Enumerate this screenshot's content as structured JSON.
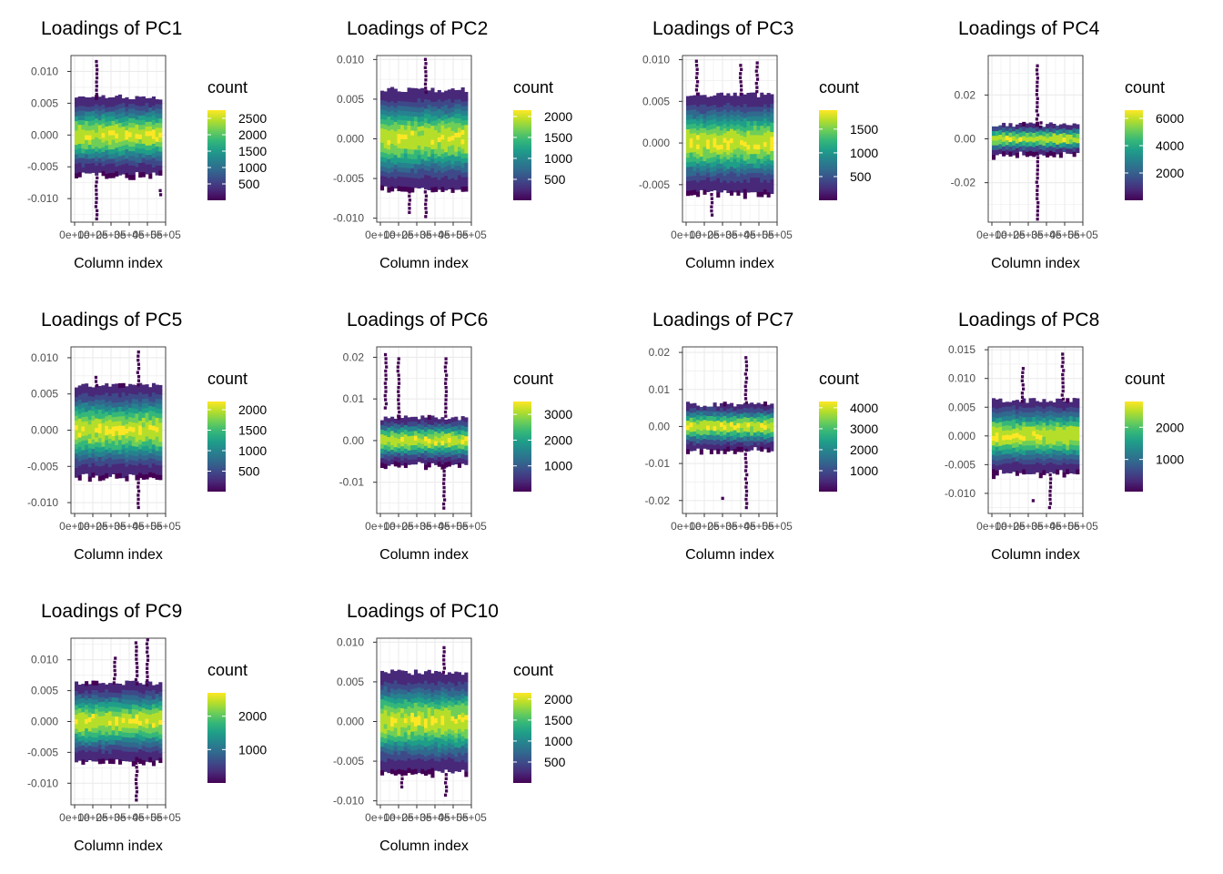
{
  "colors": {
    "viridis": [
      "#440154",
      "#482878",
      "#3e4989",
      "#31688e",
      "#26828e",
      "#1f9e89",
      "#35b779",
      "#6ece58",
      "#b5de2b",
      "#fde725"
    ],
    "grid": "#ebebeb",
    "panel_border": "#333333",
    "axis_text": "#4d4d4d"
  },
  "chart_data": [
    {
      "type": "heatmap",
      "title": "Loadings of PC1",
      "xlabel": "Column index",
      "ylabel": "",
      "legend_title": "count",
      "xlim": [
        -20000,
        500000
      ],
      "x_ticks": [
        0,
        100000,
        200000,
        300000,
        400000,
        500000
      ],
      "x_tick_labels": [
        "0e+00",
        "1e+05",
        "2e+05",
        "3e+05",
        "4e+05",
        "5e+05"
      ],
      "ylim": [
        -0.0137,
        0.0125
      ],
      "y_ticks": [
        -0.01,
        -0.005,
        0.0,
        0.005,
        0.01
      ],
      "y_tick_labels": [
        "-0.010",
        "-0.005",
        "0.000",
        "0.005",
        "0.010"
      ],
      "legend_ticks": [
        500,
        1000,
        1500,
        2000,
        2500
      ],
      "legend_max": 2750,
      "center": 0.0,
      "band_half_width": 0.006,
      "band_max_count": 2750,
      "outliers": [
        {
          "x": 120000,
          "y_min": 0.006,
          "y_max": 0.0118
        },
        {
          "x": 120000,
          "y_min": -0.0135,
          "y_max": -0.0065
        },
        {
          "x": 470000,
          "y_min": -0.0095,
          "y_max": -0.0085
        }
      ]
    },
    {
      "type": "heatmap",
      "title": "Loadings of PC2",
      "xlabel": "Column index",
      "ylabel": "",
      "legend_title": "count",
      "xlim": [
        -20000,
        500000
      ],
      "x_ticks": [
        0,
        100000,
        200000,
        300000,
        400000,
        500000
      ],
      "x_tick_labels": [
        "0e+00",
        "1e+05",
        "2e+05",
        "3e+05",
        "4e+05",
        "5e+05"
      ],
      "ylim": [
        -0.0105,
        0.0105
      ],
      "y_ticks": [
        -0.01,
        -0.005,
        0.0,
        0.005,
        0.01
      ],
      "y_tick_labels": [
        "-0.010",
        "-0.005",
        "0.000",
        "0.005",
        "0.010"
      ],
      "legend_ticks": [
        500,
        1000,
        1500,
        2000
      ],
      "legend_max": 2150,
      "center": 0.0,
      "band_half_width": 0.0062,
      "band_max_count": 2150,
      "outliers": [
        {
          "x": 250000,
          "y_min": 0.006,
          "y_max": 0.0102
        },
        {
          "x": 250000,
          "y_min": -0.0098,
          "y_max": -0.0065
        },
        {
          "x": 160000,
          "y_min": -0.0095,
          "y_max": -0.0065
        }
      ]
    },
    {
      "type": "heatmap",
      "title": "Loadings of PC3",
      "xlabel": "Column index",
      "ylabel": "",
      "legend_title": "count",
      "xlim": [
        -20000,
        500000
      ],
      "x_ticks": [
        0,
        100000,
        200000,
        300000,
        400000,
        500000
      ],
      "x_tick_labels": [
        "0e+00",
        "1e+05",
        "2e+05",
        "3e+05",
        "4e+05",
        "5e+05"
      ],
      "ylim": [
        -0.0095,
        0.0105
      ],
      "y_ticks": [
        -0.005,
        0.0,
        0.005,
        0.01
      ],
      "y_tick_labels": [
        "-0.005",
        "0.000",
        "0.005",
        "0.010"
      ],
      "legend_ticks": [
        500,
        1000,
        1500
      ],
      "legend_max": 1900,
      "center": 0.0,
      "band_half_width": 0.0058,
      "band_max_count": 1900,
      "outliers": [
        {
          "x": 60000,
          "y_min": 0.006,
          "y_max": 0.01
        },
        {
          "x": 300000,
          "y_min": 0.006,
          "y_max": 0.0095
        },
        {
          "x": 390000,
          "y_min": 0.006,
          "y_max": 0.0098
        },
        {
          "x": 140000,
          "y_min": -0.0085,
          "y_max": -0.006
        }
      ]
    },
    {
      "type": "heatmap",
      "title": "Loadings of PC4",
      "xlabel": "Column index",
      "ylabel": "",
      "legend_title": "count",
      "xlim": [
        -20000,
        500000
      ],
      "x_ticks": [
        0,
        100000,
        200000,
        300000,
        400000,
        500000
      ],
      "x_tick_labels": [
        "0e+00",
        "1e+05",
        "2e+05",
        "3e+05",
        "4e+05",
        "5e+05"
      ],
      "ylim": [
        -0.038,
        0.038
      ],
      "y_ticks": [
        -0.02,
        0.0,
        0.02
      ],
      "y_tick_labels": [
        "-0.02",
        "0.00",
        "0.02"
      ],
      "legend_ticks": [
        2000,
        4000,
        6000
      ],
      "legend_max": 6600,
      "center": 0.0,
      "band_half_width": 0.0065,
      "band_max_count": 6600,
      "outliers": [
        {
          "x": 250000,
          "y_min": 0.006,
          "y_max": 0.034
        },
        {
          "x": 250000,
          "y_min": -0.037,
          "y_max": -0.006
        },
        {
          "x": 270000,
          "y_min": 0.006,
          "y_max": 0.008
        }
      ]
    },
    {
      "type": "heatmap",
      "title": "Loadings of PC5",
      "xlabel": "Column index",
      "ylabel": "",
      "legend_title": "count",
      "xlim": [
        -20000,
        500000
      ],
      "x_ticks": [
        0,
        100000,
        200000,
        300000,
        400000,
        500000
      ],
      "x_tick_labels": [
        "0e+00",
        "1e+05",
        "2e+05",
        "3e+05",
        "4e+05",
        "5e+05"
      ],
      "ylim": [
        -0.0115,
        0.0115
      ],
      "y_ticks": [
        -0.01,
        -0.005,
        0.0,
        0.005,
        0.01
      ],
      "y_tick_labels": [
        "-0.010",
        "-0.005",
        "0.000",
        "0.005",
        "0.010"
      ],
      "legend_ticks": [
        500,
        1000,
        1500,
        2000
      ],
      "legend_max": 2200,
      "center": 0.0,
      "band_half_width": 0.0062,
      "band_max_count": 2200,
      "outliers": [
        {
          "x": 350000,
          "y_min": 0.006,
          "y_max": 0.011
        },
        {
          "x": 350000,
          "y_min": -0.011,
          "y_max": -0.0065
        },
        {
          "x": 120000,
          "y_min": 0.006,
          "y_max": 0.0075
        }
      ]
    },
    {
      "type": "heatmap",
      "title": "Loadings of PC6",
      "xlabel": "Column index",
      "ylabel": "",
      "legend_title": "count",
      "xlim": [
        -20000,
        500000
      ],
      "x_ticks": [
        0,
        100000,
        200000,
        300000,
        400000,
        500000
      ],
      "x_tick_labels": [
        "0e+00",
        "1e+05",
        "2e+05",
        "3e+05",
        "4e+05",
        "5e+05"
      ],
      "ylim": [
        -0.0175,
        0.0225
      ],
      "y_ticks": [
        -0.01,
        0.0,
        0.01,
        0.02
      ],
      "y_tick_labels": [
        "-0.01",
        "0.00",
        "0.01",
        "0.02"
      ],
      "legend_ticks": [
        1000,
        2000,
        3000
      ],
      "legend_max": 3500,
      "center": 0.0,
      "band_half_width": 0.0055,
      "band_max_count": 3500,
      "outliers": [
        {
          "x": 100000,
          "y_min": 0.006,
          "y_max": 0.02
        },
        {
          "x": 360000,
          "y_min": 0.006,
          "y_max": 0.02
        },
        {
          "x": 350000,
          "y_min": -0.016,
          "y_max": -0.006
        },
        {
          "x": 30000,
          "y_min": 0.008,
          "y_max": 0.021
        }
      ]
    },
    {
      "type": "heatmap",
      "title": "Loadings of PC7",
      "xlabel": "Column index",
      "ylabel": "",
      "legend_title": "count",
      "xlim": [
        -20000,
        500000
      ],
      "x_ticks": [
        0,
        100000,
        200000,
        300000,
        400000,
        500000
      ],
      "x_tick_labels": [
        "0e+00",
        "1e+05",
        "2e+05",
        "3e+05",
        "4e+05",
        "5e+05"
      ],
      "ylim": [
        -0.0235,
        0.0215
      ],
      "y_ticks": [
        -0.02,
        -0.01,
        0.0,
        0.01,
        0.02
      ],
      "y_tick_labels": [
        "-0.02",
        "-0.01",
        "0.00",
        "0.01",
        "0.02"
      ],
      "legend_ticks": [
        1000,
        2000,
        3000,
        4000
      ],
      "legend_max": 4300,
      "center": 0.0,
      "band_half_width": 0.006,
      "band_max_count": 4300,
      "outliers": [
        {
          "x": 330000,
          "y_min": 0.006,
          "y_max": 0.019
        },
        {
          "x": 330000,
          "y_min": -0.022,
          "y_max": -0.006
        },
        {
          "x": 200000,
          "y_min": -0.02,
          "y_max": -0.019
        }
      ]
    },
    {
      "type": "heatmap",
      "title": "Loadings of PC8",
      "xlabel": "Column index",
      "ylabel": "",
      "legend_title": "count",
      "xlim": [
        -20000,
        500000
      ],
      "x_ticks": [
        0,
        100000,
        200000,
        300000,
        400000,
        500000
      ],
      "x_tick_labels": [
        "0e+00",
        "1e+05",
        "2e+05",
        "3e+05",
        "4e+05",
        "5e+05"
      ],
      "ylim": [
        -0.0135,
        0.0155
      ],
      "y_ticks": [
        -0.01,
        -0.005,
        0.0,
        0.005,
        0.01,
        0.015
      ],
      "y_tick_labels": [
        "-0.010",
        "-0.005",
        "0.000",
        "0.005",
        "0.010",
        "0.015"
      ],
      "legend_ticks": [
        1000,
        2000
      ],
      "legend_max": 2800,
      "center": 0.0,
      "band_half_width": 0.0062,
      "band_max_count": 2800,
      "outliers": [
        {
          "x": 170000,
          "y_min": 0.006,
          "y_max": 0.012
        },
        {
          "x": 390000,
          "y_min": 0.006,
          "y_max": 0.0145
        },
        {
          "x": 320000,
          "y_min": -0.0125,
          "y_max": -0.0065
        },
        {
          "x": 230000,
          "y_min": -0.0115,
          "y_max": -0.011
        }
      ]
    },
    {
      "type": "heatmap",
      "title": "Loadings of PC9",
      "xlabel": "Column index",
      "ylabel": "",
      "legend_title": "count",
      "xlim": [
        -20000,
        500000
      ],
      "x_ticks": [
        0,
        100000,
        200000,
        300000,
        400000,
        500000
      ],
      "x_tick_labels": [
        "0e+00",
        "1e+05",
        "2e+05",
        "3e+05",
        "4e+05",
        "5e+05"
      ],
      "ylim": [
        -0.0135,
        0.0135
      ],
      "y_ticks": [
        -0.01,
        -0.005,
        0.0,
        0.005,
        0.01
      ],
      "y_tick_labels": [
        "-0.010",
        "-0.005",
        "0.000",
        "0.005",
        "0.010"
      ],
      "legend_ticks": [
        1000,
        2000
      ],
      "legend_max": 2700,
      "center": 0.0,
      "band_half_width": 0.0062,
      "band_max_count": 2700,
      "outliers": [
        {
          "x": 340000,
          "y_min": 0.006,
          "y_max": 0.013
        },
        {
          "x": 400000,
          "y_min": 0.006,
          "y_max": 0.0135
        },
        {
          "x": 340000,
          "y_min": -0.0125,
          "y_max": -0.0065
        },
        {
          "x": 220000,
          "y_min": 0.006,
          "y_max": 0.0105
        }
      ]
    },
    {
      "type": "heatmap",
      "title": "Loadings of PC10",
      "xlabel": "Column index",
      "ylabel": "",
      "legend_title": "count",
      "xlim": [
        -20000,
        500000
      ],
      "x_ticks": [
        0,
        100000,
        200000,
        300000,
        400000,
        500000
      ],
      "x_tick_labels": [
        "0e+00",
        "1e+05",
        "2e+05",
        "3e+05",
        "4e+05",
        "5e+05"
      ],
      "ylim": [
        -0.0105,
        0.0105
      ],
      "y_ticks": [
        -0.01,
        -0.005,
        0.0,
        0.005,
        0.01
      ],
      "y_tick_labels": [
        "-0.010",
        "-0.005",
        "0.000",
        "0.005",
        "0.010"
      ],
      "legend_ticks": [
        500,
        1000,
        1500,
        2000
      ],
      "legend_max": 2150,
      "center": 0.0,
      "band_half_width": 0.0062,
      "band_max_count": 2150,
      "outliers": [
        {
          "x": 350000,
          "y_min": 0.006,
          "y_max": 0.0095
        },
        {
          "x": 360000,
          "y_min": -0.0095,
          "y_max": -0.0065
        },
        {
          "x": 120000,
          "y_min": -0.0085,
          "y_max": -0.0065
        }
      ]
    }
  ]
}
